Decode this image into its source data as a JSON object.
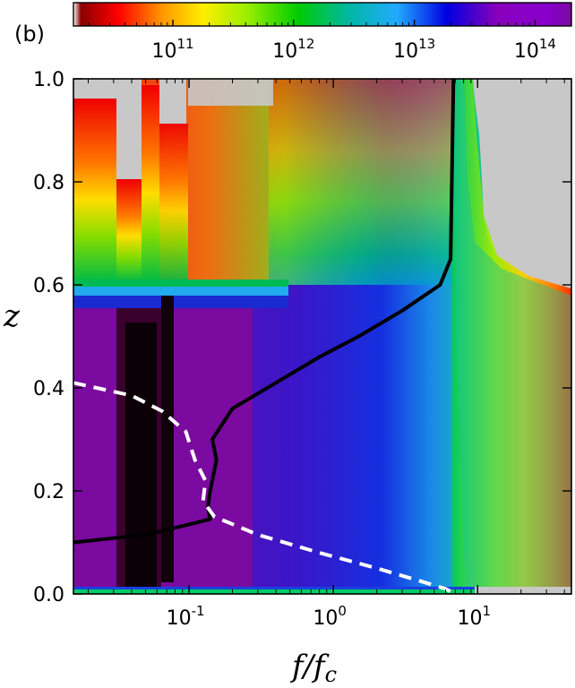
{
  "chart_data": {
    "type": "heatmap",
    "panel_label": "(b)",
    "xlabel": "f/f",
    "xlabel_sub": "c",
    "ylabel": "z",
    "x_scale": "log",
    "xlim": [
      0.0158,
      44.7
    ],
    "ylim": [
      0.0,
      1.0
    ],
    "x_ticks": [
      {
        "value": 0.1,
        "base": "10",
        "exp": "-1"
      },
      {
        "value": 1,
        "base": "10",
        "exp": "0"
      },
      {
        "value": 10,
        "base": "10",
        "exp": "1"
      }
    ],
    "y_ticks": [
      {
        "value": 0.0,
        "label": "0.0"
      },
      {
        "value": 0.2,
        "label": "0.2"
      },
      {
        "value": 0.4,
        "label": "0.4"
      },
      {
        "value": 0.6,
        "label": "0.6"
      },
      {
        "value": 0.8,
        "label": "0.8"
      },
      {
        "value": 1.0,
        "label": "1.0"
      }
    ],
    "colorbar": {
      "scale": "log",
      "range": [
        15000000000.0,
        200000000000000.0
      ],
      "orientation": "horizontal",
      "placement": "top",
      "ticks": [
        {
          "value": 100000000000.0,
          "base": "10",
          "exp": "11"
        },
        {
          "value": 1000000000000.0,
          "base": "10",
          "exp": "12"
        },
        {
          "value": 10000000000000.0,
          "base": "10",
          "exp": "13"
        },
        {
          "value": 100000000000000.0,
          "base": "10",
          "exp": "14"
        }
      ]
    },
    "series": [
      {
        "style": "solid-black",
        "points": [
          [
            0.0158,
            0.1
          ],
          [
            0.05,
            0.115
          ],
          [
            0.1,
            0.135
          ],
          [
            0.14,
            0.145
          ],
          [
            0.135,
            0.17
          ],
          [
            0.14,
            0.2
          ],
          [
            0.155,
            0.26
          ],
          [
            0.145,
            0.3
          ],
          [
            0.2,
            0.36
          ],
          [
            0.4,
            0.41
          ],
          [
            0.8,
            0.46
          ],
          [
            1.5,
            0.5
          ],
          [
            3.0,
            0.55
          ],
          [
            5.5,
            0.6
          ],
          [
            6.5,
            0.65
          ],
          [
            6.8,
            1.0
          ]
        ]
      },
      {
        "style": "dashed-white",
        "points": [
          [
            0.0158,
            0.41
          ],
          [
            0.04,
            0.385
          ],
          [
            0.065,
            0.355
          ],
          [
            0.095,
            0.315
          ],
          [
            0.11,
            0.26
          ],
          [
            0.13,
            0.22
          ],
          [
            0.125,
            0.18
          ],
          [
            0.15,
            0.15
          ],
          [
            0.3,
            0.115
          ],
          [
            0.8,
            0.08
          ],
          [
            2.0,
            0.05
          ],
          [
            4.0,
            0.025
          ],
          [
            6.0,
            0.01
          ],
          [
            7.0,
            0.0
          ]
        ]
      }
    ]
  }
}
